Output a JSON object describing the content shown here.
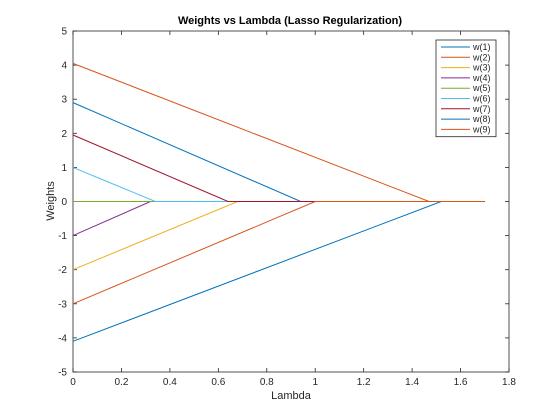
{
  "chart_data": {
    "type": "line",
    "title": "Weights vs Lambda (Lasso Regularization)",
    "xlabel": "Lambda",
    "ylabel": "Weights",
    "xlim": [
      0,
      1.8
    ],
    "ylim": [
      -5,
      5
    ],
    "xticks": [
      "0",
      "0.2",
      "0.4",
      "0.6",
      "0.8",
      "1",
      "1.2",
      "1.4",
      "1.6",
      "1.8"
    ],
    "yticks": [
      "-5",
      "-4",
      "-3",
      "-2",
      "-1",
      "0",
      "1",
      "2",
      "3",
      "4",
      "5"
    ],
    "grid": false,
    "legend_position": "top-right",
    "series": [
      {
        "name": "w(1)",
        "color": "#0072BD",
        "x": [
          0,
          0.94,
          1.7
        ],
        "y": [
          2.9,
          0,
          0
        ]
      },
      {
        "name": "w(2)",
        "color": "#D95319",
        "x": [
          0,
          1.47,
          1.7
        ],
        "y": [
          4.05,
          0,
          0
        ]
      },
      {
        "name": "w(3)",
        "color": "#EDB120",
        "x": [
          0,
          0.68,
          1.7
        ],
        "y": [
          -2.0,
          0,
          0
        ]
      },
      {
        "name": "w(4)",
        "color": "#7E2F8E",
        "x": [
          0,
          0.32,
          1.7
        ],
        "y": [
          -1.0,
          0,
          0
        ]
      },
      {
        "name": "w(5)",
        "color": "#77AC30",
        "x": [
          0,
          1.7
        ],
        "y": [
          0,
          0
        ]
      },
      {
        "name": "w(6)",
        "color": "#4DBEEE",
        "x": [
          0,
          0.34,
          1.7
        ],
        "y": [
          1.0,
          0,
          0
        ]
      },
      {
        "name": "w(7)",
        "color": "#A2142F",
        "x": [
          0,
          0.64,
          1.7
        ],
        "y": [
          1.95,
          0,
          0
        ]
      },
      {
        "name": "w(8)",
        "color": "#0072BD",
        "x": [
          0,
          1.52,
          1.7
        ],
        "y": [
          -4.1,
          0,
          0
        ]
      },
      {
        "name": "w(9)",
        "color": "#D95319",
        "x": [
          0,
          1.0,
          1.7
        ],
        "y": [
          -3.0,
          0,
          0
        ]
      }
    ]
  }
}
